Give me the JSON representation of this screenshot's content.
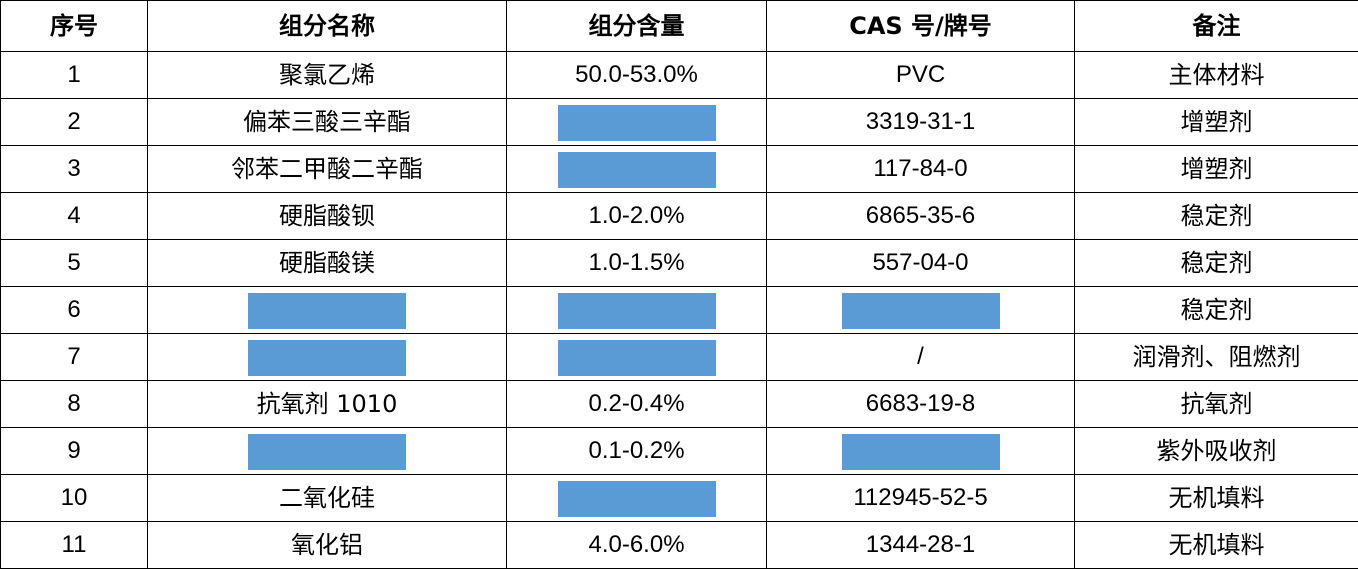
{
  "headers": [
    "序号",
    "组分名称",
    "组分含量",
    "CAS 号/牌号",
    "备注"
  ],
  "redaction_color": "#5b9bd5",
  "rows": [
    {
      "no": "1",
      "name": "聚氯乙烯",
      "content": "50.0-53.0%",
      "cas": "PVC",
      "note": "主体材料"
    },
    {
      "no": "2",
      "name": "偏苯三酸三辛酯",
      "content": null,
      "cas": "3319-31-1",
      "note": "增塑剂"
    },
    {
      "no": "3",
      "name": "邻苯二甲酸二辛酯",
      "content": null,
      "cas": "117-84-0",
      "note": "增塑剂"
    },
    {
      "no": "4",
      "name": "硬脂酸钡",
      "content": "1.0-2.0%",
      "cas": "6865-35-6",
      "note": "稳定剂"
    },
    {
      "no": "5",
      "name": "硬脂酸镁",
      "content": "1.0-1.5%",
      "cas": "557-04-0",
      "note": "稳定剂"
    },
    {
      "no": "6",
      "name": null,
      "content": null,
      "cas": null,
      "note": "稳定剂"
    },
    {
      "no": "7",
      "name": null,
      "content": null,
      "cas": "/",
      "note": "润滑剂、阻燃剂"
    },
    {
      "no": "8",
      "name": "抗氧剂 1010",
      "content": "0.2-0.4%",
      "cas": "6683-19-8",
      "note": "抗氧剂"
    },
    {
      "no": "9",
      "name": null,
      "content": "0.1-0.2%",
      "cas": null,
      "note": "紫外吸收剂"
    },
    {
      "no": "10",
      "name": "二氧化硅",
      "content": null,
      "cas": "112945-52-5",
      "note": "无机填料"
    },
    {
      "no": "11",
      "name": "氧化铝",
      "content": "4.0-6.0%",
      "cas": "1344-28-1",
      "note": "无机填料"
    }
  ]
}
